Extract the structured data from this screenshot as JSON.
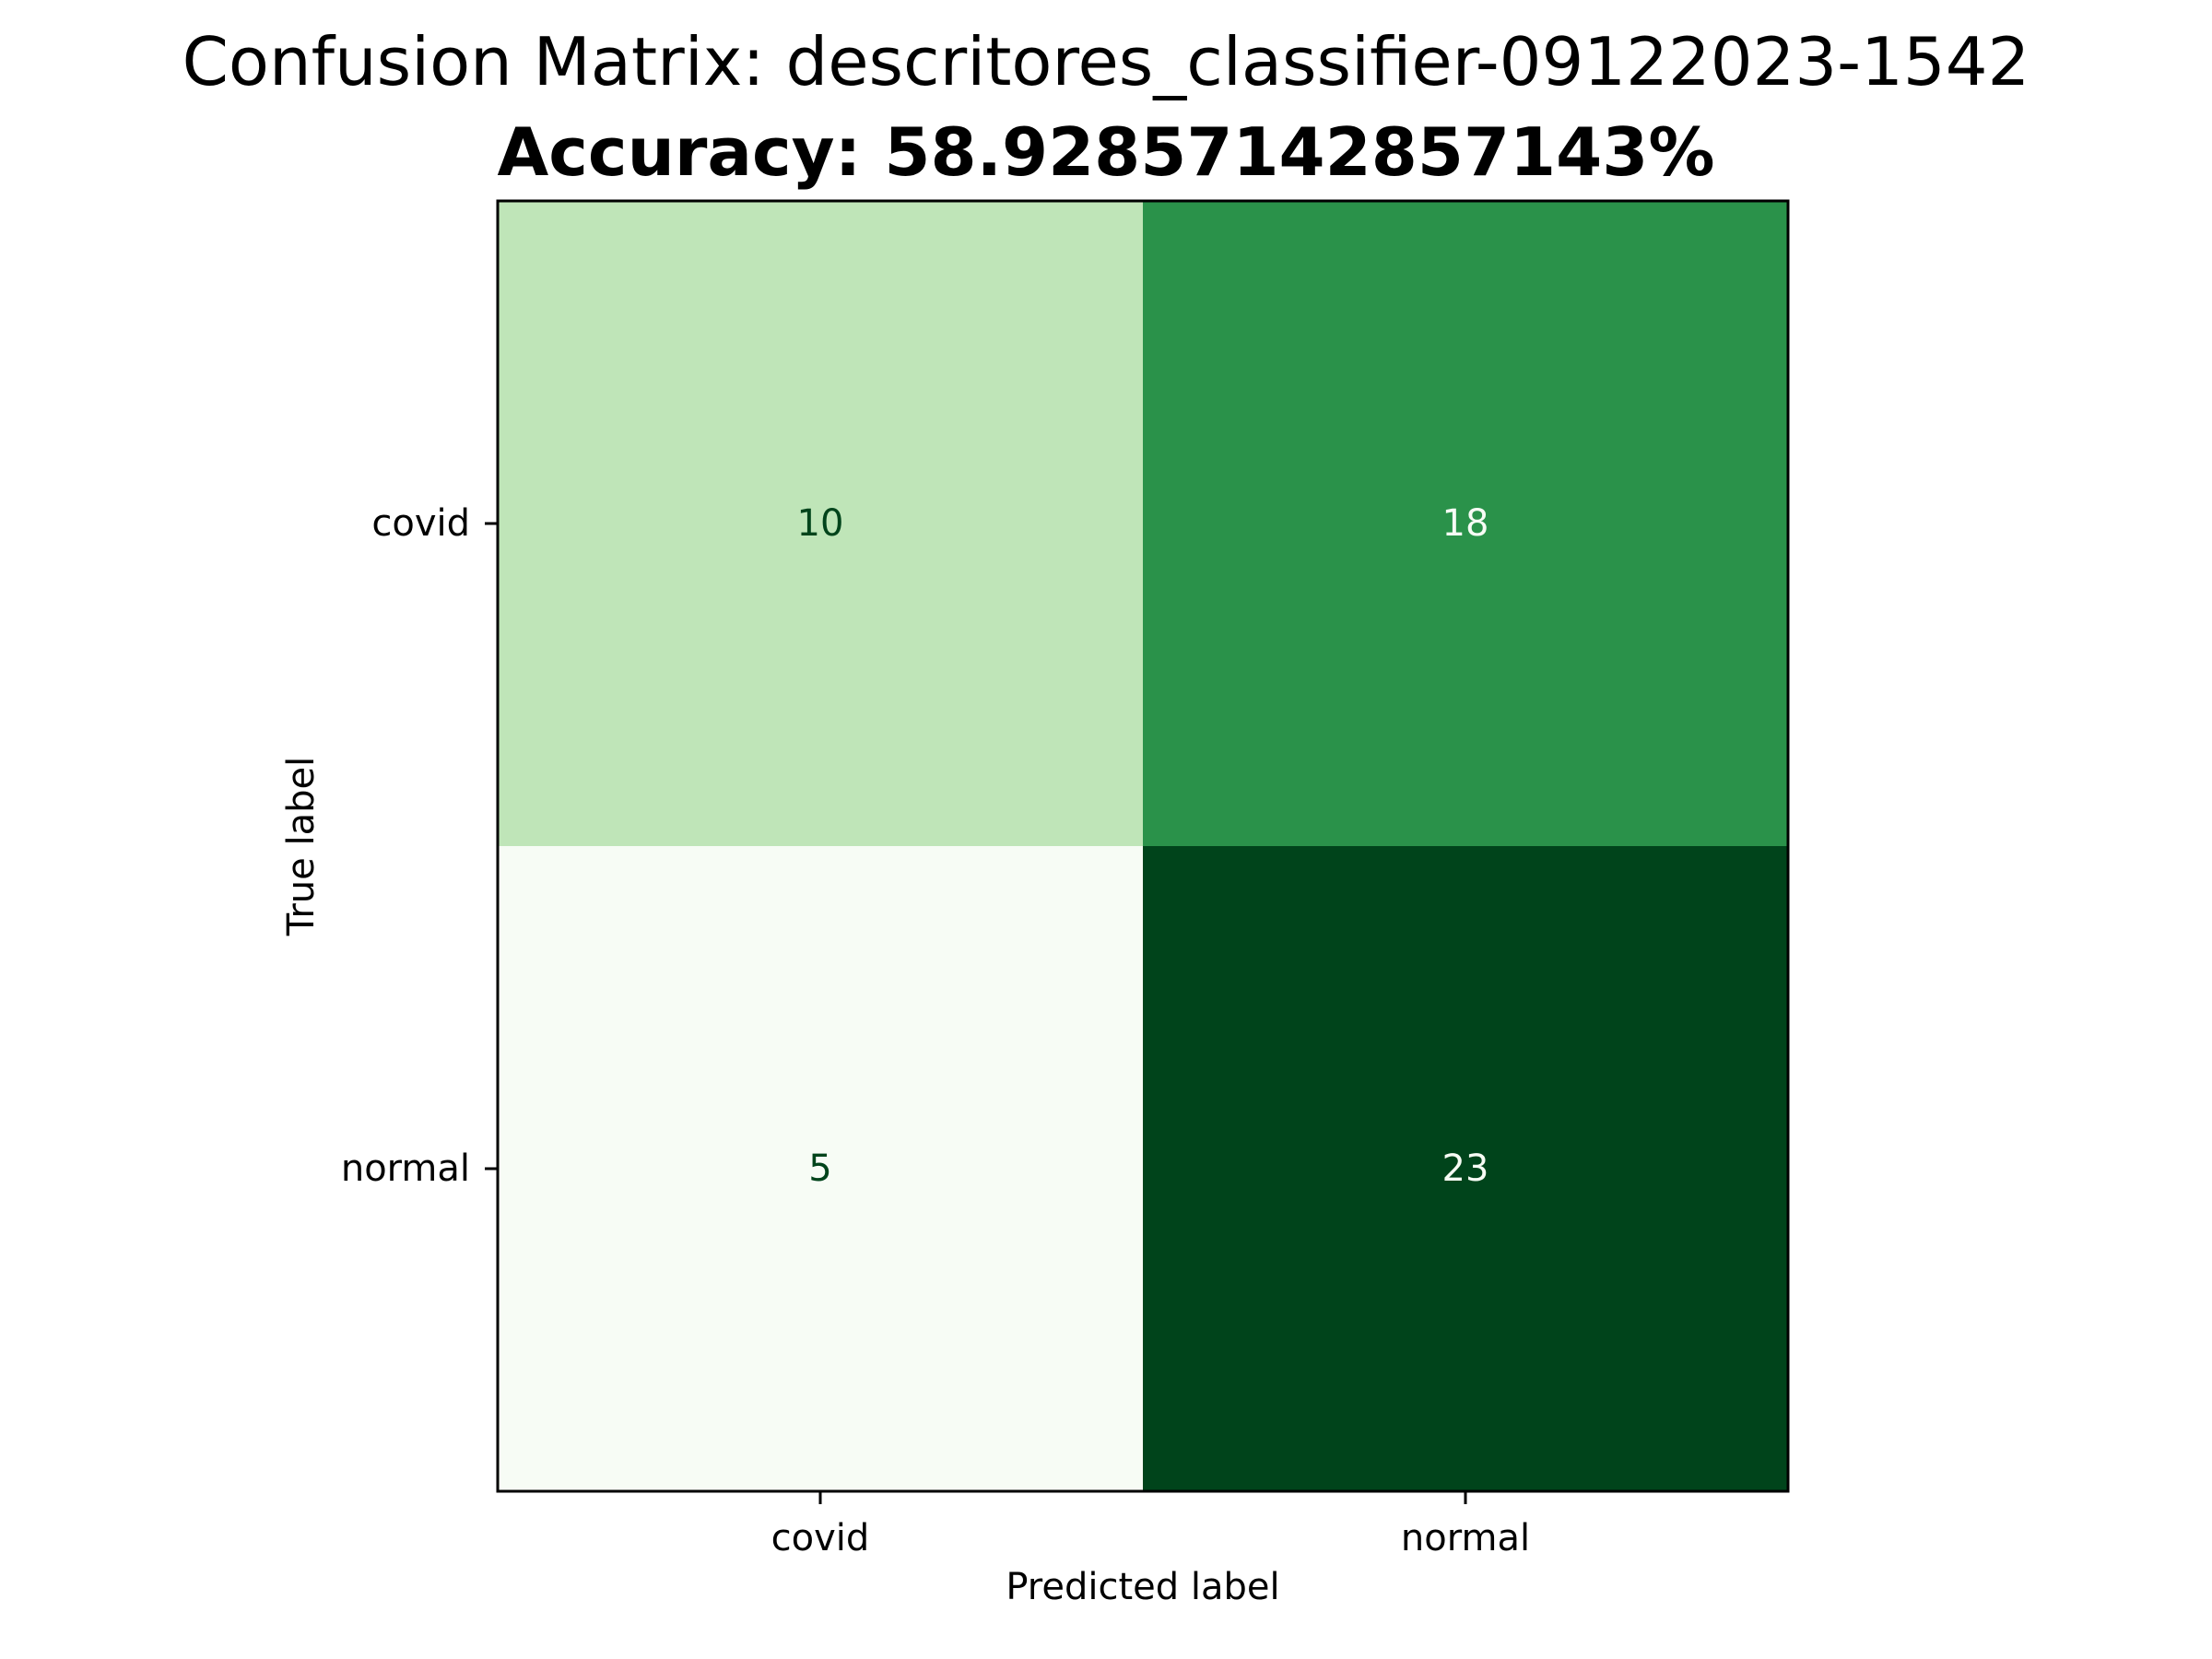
{
  "chart_data": {
    "type": "heatmap",
    "title": "Confusion Matrix: descritores_classifier-09122023-1542",
    "subtitle": "Accuracy: 58.92857142857143%",
    "xlabel": "Predicted label",
    "ylabel": "True label",
    "x_categories": [
      "covid",
      "normal"
    ],
    "y_categories": [
      "covid",
      "normal"
    ],
    "values": [
      [
        10,
        18
      ],
      [
        5,
        23
      ]
    ],
    "colormap": "Greens",
    "color_range": [
      5,
      23
    ],
    "grid": false,
    "colorbar": false
  }
}
